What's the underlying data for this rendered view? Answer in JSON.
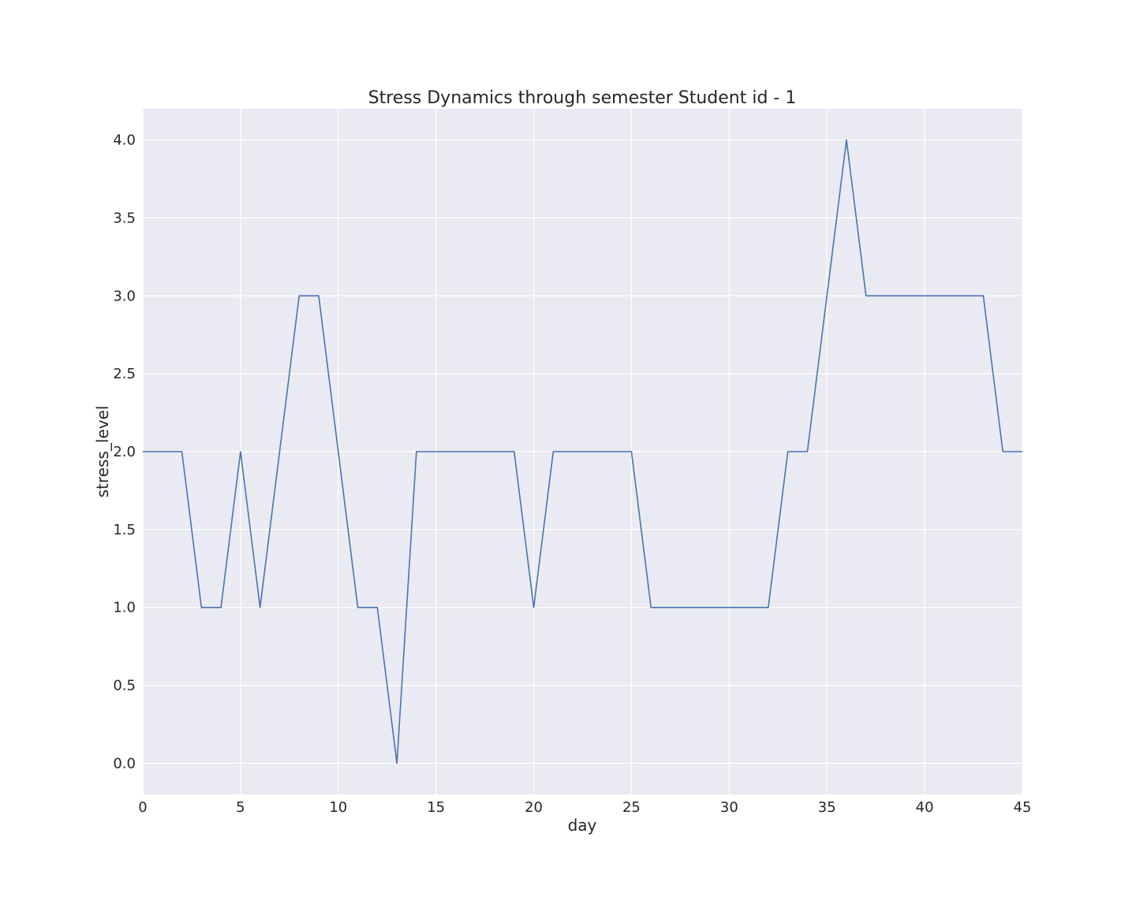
{
  "chart_data": {
    "type": "line",
    "title": "Stress Dynamics through semester Student id - 1",
    "xlabel": "day",
    "ylabel": "stress_level",
    "xlim": [
      0,
      45
    ],
    "ylim": [
      -0.2,
      4.2
    ],
    "x_ticks": [
      0,
      5,
      10,
      15,
      20,
      25,
      30,
      35,
      40,
      45
    ],
    "x_tick_labels": [
      "0",
      "5",
      "10",
      "15",
      "20",
      "25",
      "30",
      "35",
      "40",
      "45"
    ],
    "y_ticks": [
      0.0,
      0.5,
      1.0,
      1.5,
      2.0,
      2.5,
      3.0,
      3.5,
      4.0
    ],
    "y_tick_labels": [
      "0.0",
      "0.5",
      "1.0",
      "1.5",
      "2.0",
      "2.5",
      "3.0",
      "3.5",
      "4.0"
    ],
    "grid": true,
    "background_color": "#eaeaf2",
    "series": [
      {
        "color": "#4c72b0",
        "x": [
          0,
          1,
          2,
          3,
          4,
          5,
          6,
          7,
          8,
          9,
          10,
          11,
          12,
          13,
          14,
          15,
          16,
          17,
          18,
          19,
          20,
          21,
          22,
          23,
          24,
          25,
          26,
          27,
          28,
          29,
          30,
          31,
          32,
          33,
          34,
          35,
          36,
          37,
          38,
          39,
          40,
          41,
          42,
          43,
          44,
          45
        ],
        "y": [
          2,
          2,
          2,
          1,
          1,
          2,
          1,
          2,
          3,
          3,
          2,
          1,
          1,
          0,
          2,
          2,
          2,
          2,
          2,
          2,
          1,
          2,
          2,
          2,
          2,
          2,
          1,
          1,
          1,
          1,
          1,
          1,
          1,
          2,
          2,
          3,
          4,
          3,
          3,
          3,
          3,
          3,
          3,
          3,
          2,
          2
        ]
      }
    ]
  }
}
